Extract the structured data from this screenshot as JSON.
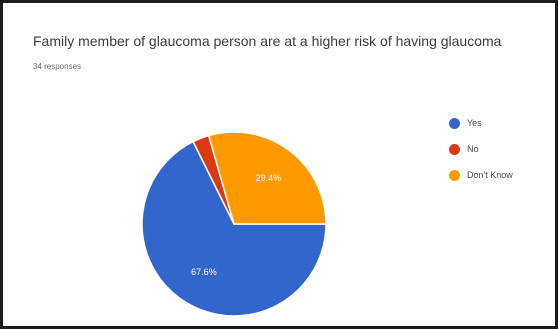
{
  "chart_data": {
    "type": "pie",
    "title": "Family member of glaucoma person are at a higher risk of having glaucoma",
    "subtitle": "34 responses",
    "slices": [
      {
        "label": "Yes",
        "value": 67.6,
        "display": "67.6%",
        "color": "#3366cc"
      },
      {
        "label": "No",
        "value": 2.9,
        "display": "",
        "color": "#dc3912"
      },
      {
        "label": "Don't Know",
        "value": 29.4,
        "display": "29.4%",
        "color": "#ff9900"
      }
    ],
    "legend_position": "right"
  }
}
